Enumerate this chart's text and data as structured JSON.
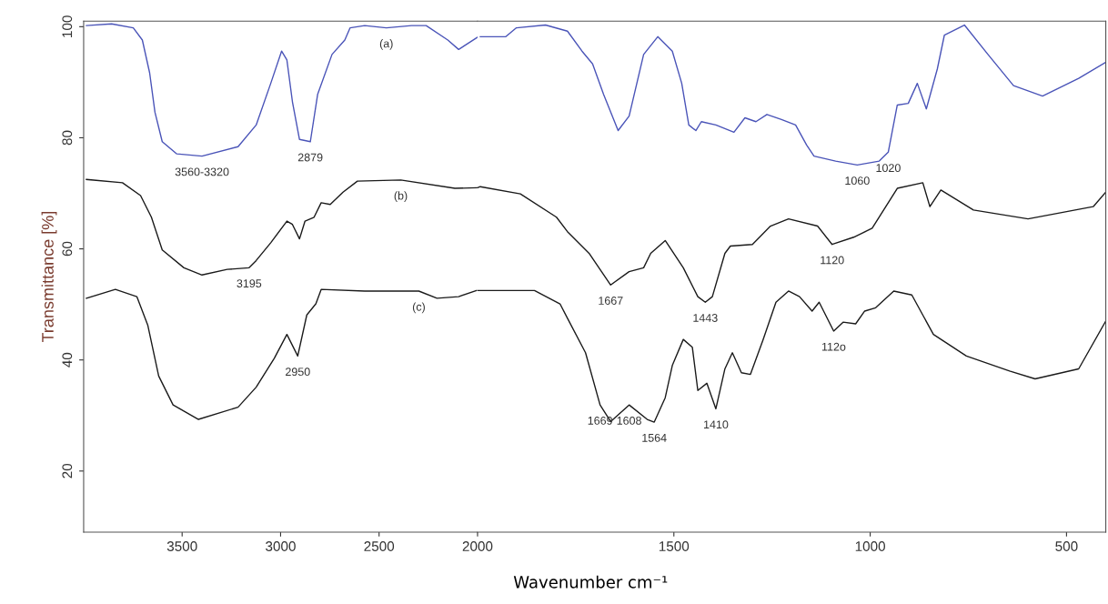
{
  "chart_data": [
    {
      "type": "line",
      "ylabel": "Transmittance [%]",
      "xlim": [
        4000,
        2000
      ],
      "xticks": [
        3500,
        3000,
        2500,
        2000
      ],
      "ylim": [
        9,
        101
      ],
      "yticks": [
        20,
        40,
        60,
        80,
        100
      ],
      "grid": false,
      "marker": "none",
      "line_style": "solid",
      "series": [
        {
          "color": "#4a54b8",
          "x": [
            3986,
            3858,
            3748,
            3702,
            3665,
            3638,
            3601,
            3527,
            3399,
            3216,
            3124,
            3050,
            2995,
            2968,
            2940,
            2904,
            2849,
            2812,
            2739,
            2674,
            2647,
            2573,
            2463,
            2335,
            2261,
            2151,
            2096,
            2000
          ],
          "values": [
            100.2,
            100.5,
            99.8,
            97.6,
            91.7,
            84.6,
            79.3,
            77.1,
            76.7,
            78.4,
            82.3,
            89.8,
            95.6,
            94.0,
            86.5,
            79.7,
            79.3,
            87.8,
            95.0,
            97.6,
            99.8,
            100.2,
            99.8,
            100.2,
            100.2,
            97.6,
            95.9,
            98.1
          ]
        },
        {
          "color": "#1a1a1a",
          "x": [
            3986,
            3803,
            3711,
            3656,
            3601,
            3491,
            3399,
            3271,
            3160,
            3124,
            3050,
            2968,
            2940,
            2904,
            2876,
            2830,
            2794,
            2748,
            2683,
            2610,
            2390,
            2115,
            2000
          ],
          "values": [
            72.5,
            71.9,
            69.6,
            65.7,
            59.8,
            56.6,
            55.3,
            56.3,
            56.6,
            57.9,
            61.1,
            65.0,
            64.4,
            61.8,
            65.0,
            65.7,
            68.3,
            68.0,
            70.2,
            72.2,
            72.4,
            70.9,
            71.0
          ]
        },
        {
          "color": "#1a1a1a",
          "x": [
            3986,
            3839,
            3730,
            3674,
            3619,
            3546,
            3417,
            3216,
            3124,
            3032,
            2968,
            2913,
            2867,
            2821,
            2794,
            2573,
            2298,
            2206,
            2096,
            2005
          ],
          "values": [
            51.1,
            52.7,
            51.4,
            46.2,
            37.1,
            31.9,
            29.3,
            31.5,
            35.1,
            40.3,
            44.6,
            40.7,
            48.1,
            50.1,
            52.7,
            52.4,
            52.4,
            51.1,
            51.4,
            52.5
          ]
        }
      ],
      "annotations": [
        {
          "text": "3560-3320",
          "x": 3399,
          "y": 76.7
        },
        {
          "text": "2879",
          "x": 2849,
          "y": 79.3
        },
        {
          "text": "(a)",
          "x": 2463,
          "y": 99.8
        },
        {
          "text": "(b)",
          "x": 2390,
          "y": 72.4
        },
        {
          "text": "3195",
          "x": 3160,
          "y": 56.6
        },
        {
          "text": "(c)",
          "x": 2298,
          "y": 52.4
        },
        {
          "text": "2950",
          "x": 2913,
          "y": 40.7
        }
      ]
    },
    {
      "type": "line",
      "xlabel": "Wavenumber cm⁻¹",
      "xlim": [
        2000,
        400
      ],
      "xticks": [
        1500,
        1000,
        500
      ],
      "ylim": [
        9,
        101
      ],
      "tick_labels": "x",
      "grid": false,
      "marker": "none",
      "line_style": "solid",
      "series": [
        {
          "color": "#4a54b8",
          "x": [
            1993,
            1928,
            1901,
            1827,
            1771,
            1734,
            1707,
            1679,
            1642,
            1614,
            1577,
            1541,
            1504,
            1480,
            1462,
            1444,
            1430,
            1393,
            1347,
            1319,
            1291,
            1263,
            1226,
            1190,
            1162,
            1143,
            1088,
            1033,
            977,
            954,
            931,
            903,
            880,
            857,
            829,
            811,
            760,
            700,
            635,
            561,
            469,
            400
          ],
          "values": [
            98.2,
            98.2,
            99.8,
            100.3,
            99.2,
            95.6,
            93.3,
            87.8,
            81.3,
            83.9,
            95.0,
            98.2,
            95.6,
            89.8,
            82.3,
            81.3,
            82.9,
            82.3,
            81.0,
            83.6,
            82.9,
            84.2,
            83.3,
            82.3,
            78.7,
            76.7,
            75.8,
            75.1,
            75.8,
            77.4,
            85.9,
            86.2,
            89.8,
            85.2,
            92.4,
            98.5,
            100.3,
            95.0,
            89.4,
            87.5,
            90.7,
            93.6
          ]
        },
        {
          "color": "#1a1a1a",
          "x": [
            2000,
            1993,
            1891,
            1799,
            1771,
            1716,
            1661,
            1614,
            1577,
            1559,
            1522,
            1476,
            1439,
            1420,
            1402,
            1370,
            1356,
            1300,
            1254,
            1208,
            1134,
            1097,
            1042,
            995,
            931,
            866,
            848,
            820,
            737,
            598,
            432,
            400
          ],
          "values": [
            71.0,
            71.2,
            69.9,
            65.7,
            63.1,
            59.2,
            53.5,
            55.9,
            56.6,
            59.2,
            61.5,
            56.6,
            51.4,
            50.4,
            51.4,
            59.2,
            60.5,
            60.8,
            64.1,
            65.4,
            64.1,
            60.8,
            62.1,
            63.7,
            70.9,
            71.9,
            67.6,
            70.6,
            67.0,
            65.4,
            67.6,
            70.2
          ]
        },
        {
          "color": "#1a1a1a",
          "x": [
            2000,
            1855,
            1790,
            1771,
            1725,
            1688,
            1661,
            1614,
            1568,
            1550,
            1522,
            1504,
            1476,
            1453,
            1439,
            1416,
            1393,
            1370,
            1351,
            1328,
            1305,
            1273,
            1240,
            1208,
            1180,
            1148,
            1130,
            1093,
            1069,
            1037,
            1014,
            986,
            940,
            894,
            839,
            755,
            645,
            580,
            469,
            400
          ],
          "values": [
            52.5,
            52.5,
            50.1,
            47.5,
            41.3,
            31.9,
            28.9,
            31.9,
            29.3,
            28.8,
            33.2,
            39.0,
            43.7,
            42.3,
            34.5,
            35.8,
            31.2,
            38.4,
            41.3,
            37.7,
            37.4,
            43.6,
            50.4,
            52.4,
            51.4,
            48.8,
            50.4,
            45.2,
            46.8,
            46.5,
            48.8,
            49.4,
            52.4,
            51.7,
            44.6,
            40.7,
            38.0,
            36.6,
            38.4,
            47.0
          ]
        }
      ],
      "annotations": [
        {
          "text": "1060",
          "x": 1033,
          "y": 75.1
        },
        {
          "text": "1020",
          "x": 954,
          "y": 77.4
        },
        {
          "text": "1667",
          "x": 1661,
          "y": 53.5
        },
        {
          "text": "1443",
          "x": 1420,
          "y": 50.4
        },
        {
          "text": "1120",
          "x": 1097,
          "y": 60.8
        },
        {
          "text": "1669",
          "x": 1688,
          "y": 31.9
        },
        {
          "text": "1608",
          "x": 1614,
          "y": 31.9
        },
        {
          "text": "1564",
          "x": 1550,
          "y": 28.8
        },
        {
          "text": "1410",
          "x": 1393,
          "y": 31.2
        },
        {
          "text": "112o",
          "x": 1093,
          "y": 45.2
        }
      ]
    }
  ]
}
